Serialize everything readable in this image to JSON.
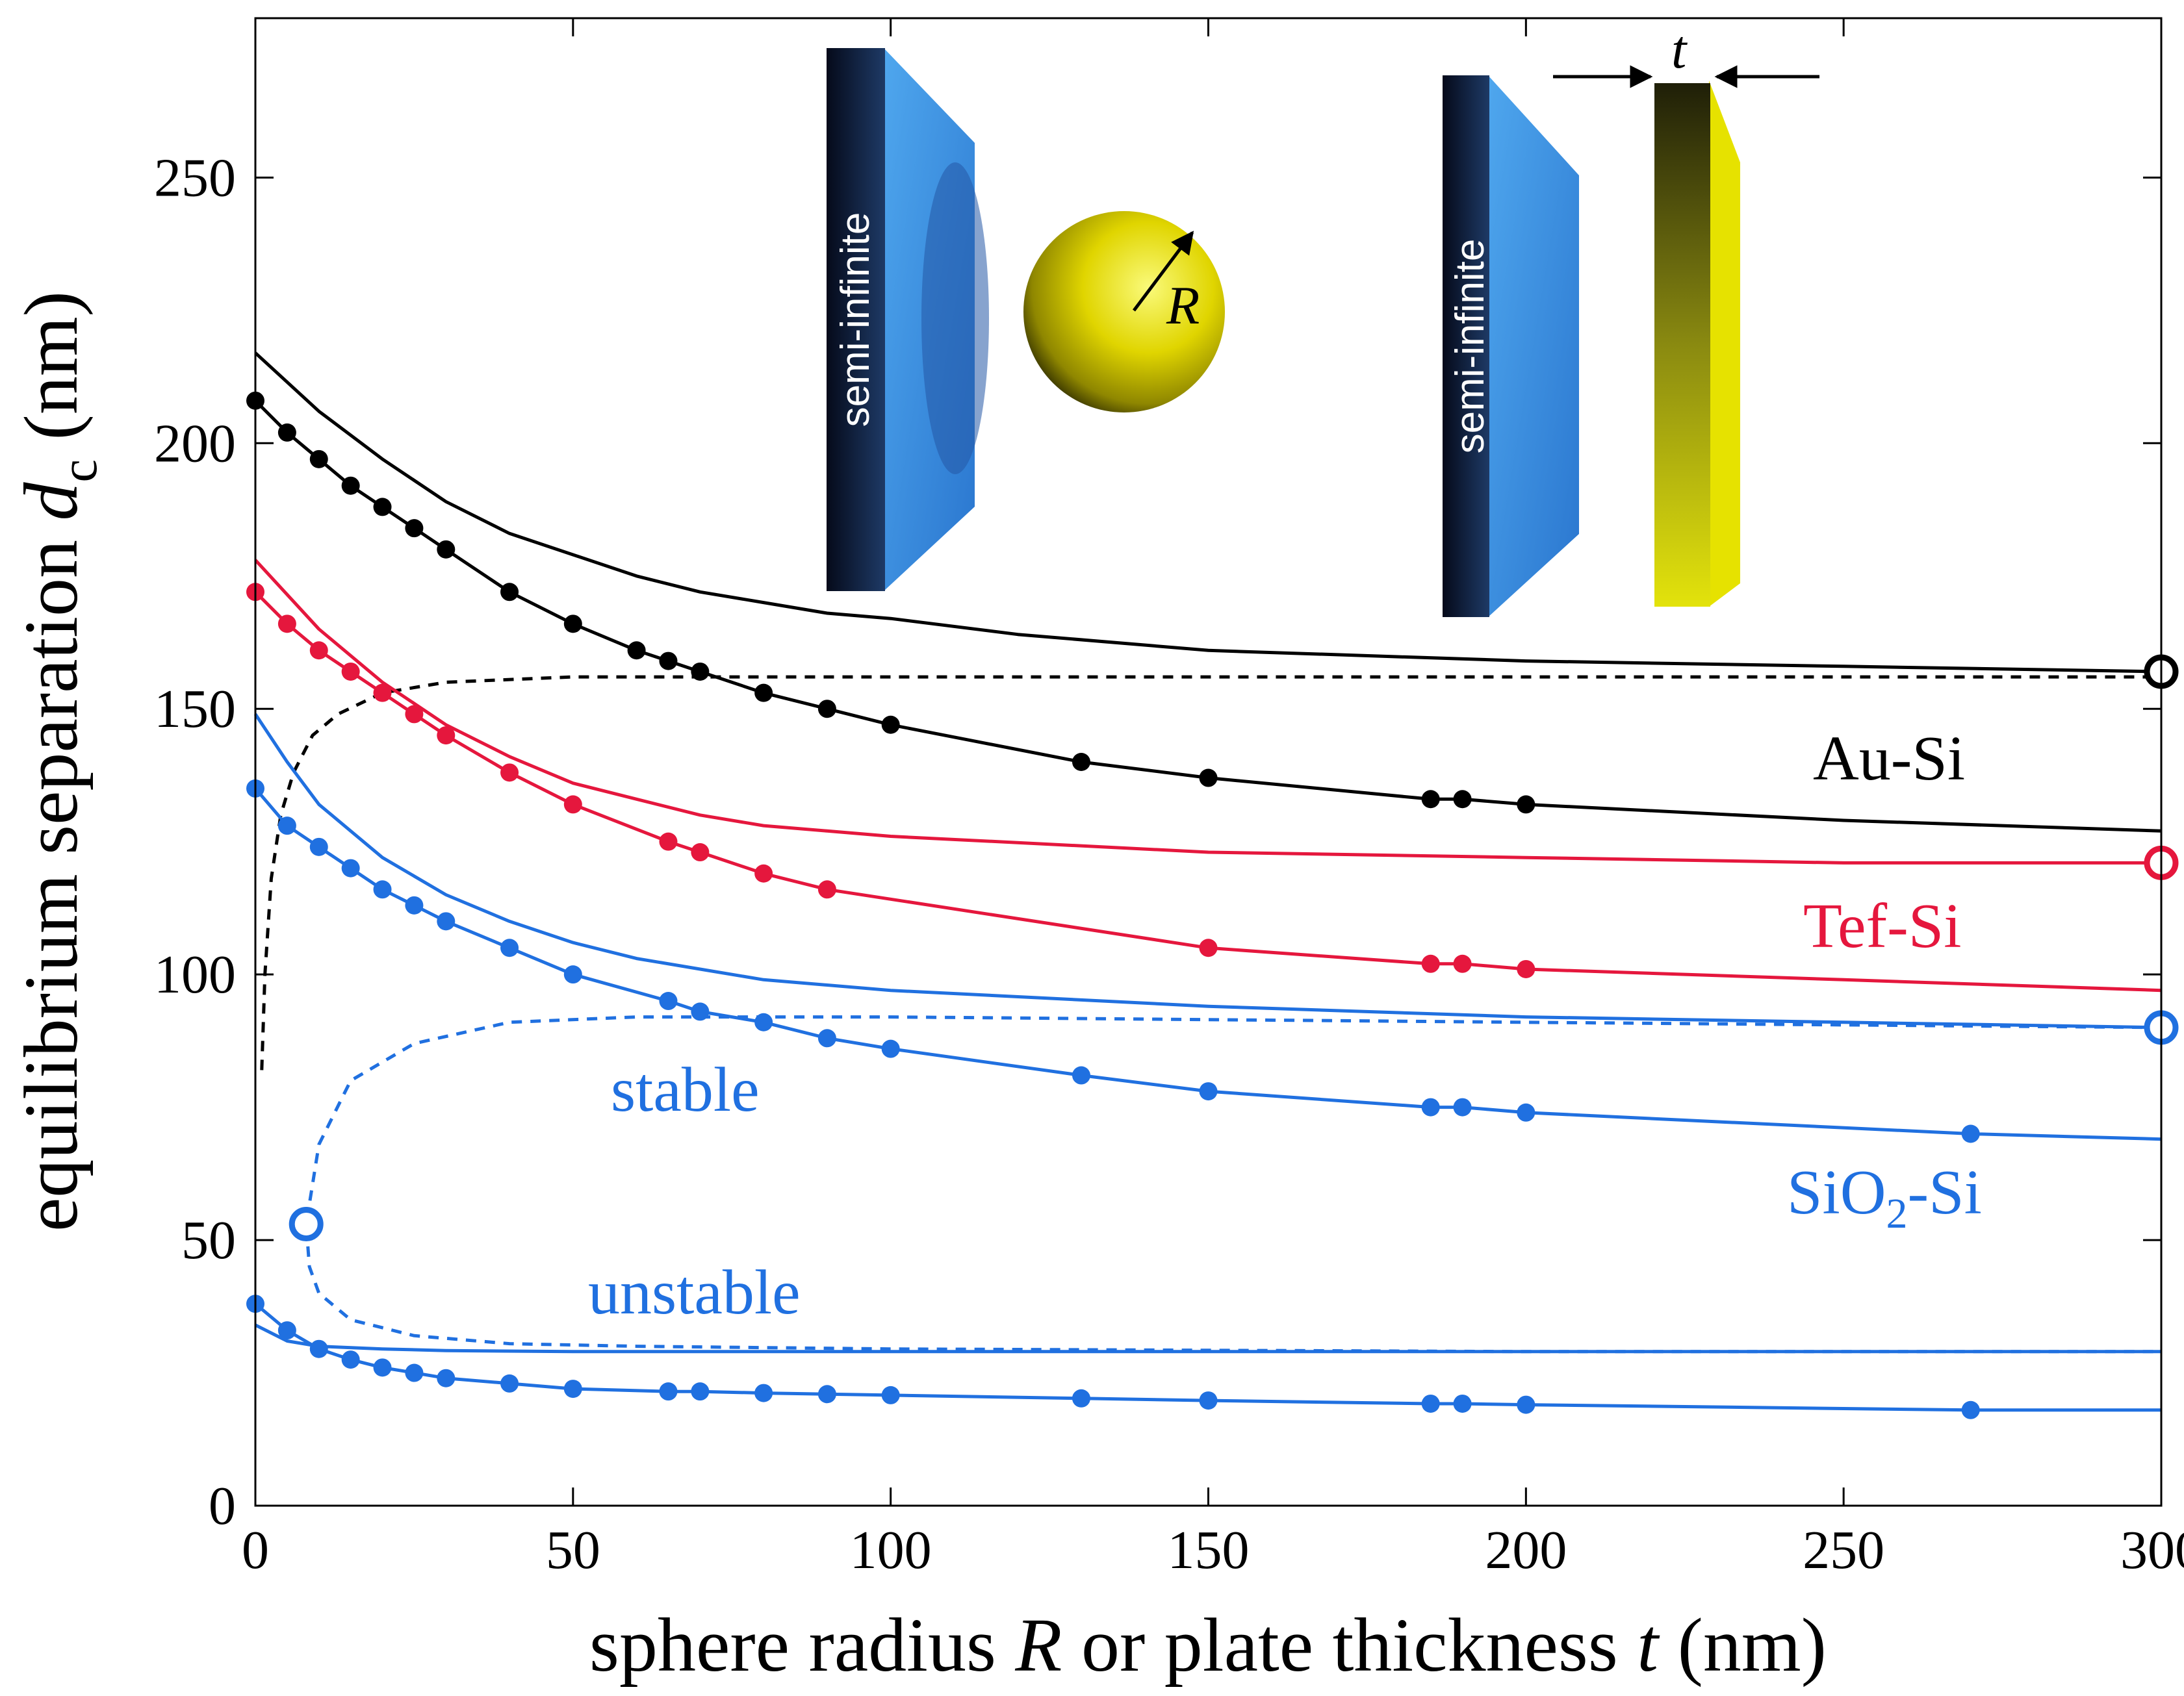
{
  "chart_data": {
    "type": "line",
    "xlabel_prefix": "sphere radius ",
    "xlabel_var1": "R",
    "xlabel_mid": " or plate thickness ",
    "xlabel_var2": "t",
    "xlabel_suffix": " (nm)",
    "ylabel_prefix": "equilibrium separation ",
    "ylabel_var": "d",
    "ylabel_sub": "c",
    "ylabel_suffix": " (nm)",
    "xlim": [
      0,
      300
    ],
    "ylim": [
      0,
      280
    ],
    "xticks": [
      "0",
      "50",
      "100",
      "150",
      "200",
      "250",
      "300"
    ],
    "yticks": [
      "0",
      "50",
      "100",
      "150",
      "200",
      "250"
    ],
    "colors": {
      "black": "#000000",
      "red": "#e5173d",
      "blue": "#2070e0"
    },
    "labels": {
      "au": "Au-Si",
      "tef": "Tef-Si",
      "sio2_prefix": "SiO",
      "sio2_sub": "2",
      "sio2_suffix": "-Si",
      "stable": "stable",
      "unstable": "unstable"
    },
    "series": [
      {
        "name": "Au-Si plate",
        "color": "black",
        "style": "solid",
        "x": [
          0,
          10,
          20,
          30,
          40,
          50,
          60,
          70,
          80,
          90,
          100,
          120,
          150,
          200,
          250,
          300
        ],
        "y": [
          217,
          206,
          197,
          189,
          183,
          179,
          175,
          172,
          170,
          168,
          167,
          164,
          161,
          159,
          158,
          157
        ]
      },
      {
        "name": "Au-Si sphere",
        "color": "black",
        "style": "solid",
        "markers": true,
        "x": [
          0,
          5,
          10,
          15,
          20,
          25,
          30,
          40,
          50,
          60,
          65,
          70,
          80,
          90,
          100,
          130,
          150,
          185,
          190,
          200,
          250,
          300
        ],
        "y": [
          208,
          202,
          197,
          192,
          188,
          184,
          180,
          172,
          166,
          161,
          159,
          157,
          153,
          150,
          147,
          140,
          137,
          133,
          133,
          132,
          129,
          127
        ],
        "marker_x": [
          0,
          5,
          10,
          15,
          20,
          25,
          30,
          40,
          50,
          60,
          65,
          70,
          80,
          90,
          100,
          130,
          150,
          185,
          190,
          200
        ]
      },
      {
        "name": "Au-Si dashed",
        "color": "black",
        "style": "dashed",
        "x": [
          1,
          1.5,
          2.5,
          4,
          6,
          9,
          13,
          20,
          30,
          50,
          100,
          300
        ],
        "y": [
          82,
          100,
          118,
          130,
          138,
          145,
          149,
          153,
          155,
          156,
          156,
          156
        ]
      },
      {
        "name": "Tef-Si plate",
        "color": "red",
        "style": "solid",
        "x": [
          0,
          10,
          20,
          30,
          40,
          50,
          60,
          70,
          80,
          90,
          100,
          150,
          200,
          250,
          300
        ],
        "y": [
          178,
          165,
          155,
          147,
          141,
          136,
          133,
          130,
          128,
          127,
          126,
          123,
          122,
          121,
          121
        ]
      },
      {
        "name": "Tef-Si sphere",
        "color": "red",
        "style": "solid",
        "markers": true,
        "x": [
          0,
          5,
          10,
          15,
          20,
          25,
          30,
          40,
          50,
          65,
          70,
          80,
          90,
          150,
          185,
          190,
          200,
          250,
          300
        ],
        "y": [
          172,
          166,
          161,
          157,
          153,
          149,
          145,
          138,
          132,
          125,
          123,
          119,
          116,
          105,
          102,
          102,
          101,
          99,
          97
        ],
        "marker_x": [
          0,
          5,
          10,
          15,
          20,
          25,
          30,
          40,
          50,
          65,
          70,
          80,
          90,
          150,
          185,
          190,
          200
        ]
      },
      {
        "name": "SiO2-Si plate",
        "color": "blue",
        "style": "solid",
        "x": [
          0,
          5,
          10,
          20,
          30,
          40,
          50,
          60,
          70,
          80,
          100,
          150,
          200,
          250,
          300
        ],
        "y": [
          149,
          140,
          132,
          122,
          115,
          110,
          106,
          103,
          101,
          99,
          97,
          94,
          92,
          91,
          90
        ]
      },
      {
        "name": "SiO2-Si sphere",
        "color": "blue",
        "style": "solid",
        "markers": true,
        "x": [
          0,
          5,
          10,
          15,
          20,
          25,
          30,
          40,
          50,
          65,
          70,
          80,
          90,
          100,
          130,
          150,
          185,
          190,
          200,
          270,
          300
        ],
        "y": [
          135,
          128,
          124,
          120,
          116,
          113,
          110,
          105,
          100,
          95,
          93,
          91,
          88,
          86,
          81,
          78,
          75,
          75,
          74,
          70,
          69
        ],
        "marker_x": [
          0,
          5,
          10,
          15,
          20,
          25,
          30,
          40,
          50,
          65,
          70,
          80,
          90,
          100,
          130,
          150,
          185,
          190,
          200,
          270
        ]
      },
      {
        "name": "SiO2-Si dashed",
        "color": "blue",
        "style": "dashed",
        "x": [
          300,
          200,
          100,
          60,
          40,
          25,
          15,
          10,
          8,
          8.5,
          10,
          15,
          25,
          40,
          60,
          100,
          200,
          300
        ],
        "y": [
          90,
          91,
          92,
          92,
          91,
          87,
          80,
          68,
          53,
          45,
          40,
          35,
          32,
          30.5,
          30,
          29.5,
          29,
          29
        ]
      },
      {
        "name": "SiO2-Si lower plate",
        "color": "blue",
        "style": "solid",
        "x": [
          0,
          5,
          10,
          20,
          30,
          50,
          100,
          200,
          300
        ],
        "y": [
          34,
          31,
          30,
          29.5,
          29.2,
          29,
          29,
          29,
          29
        ]
      },
      {
        "name": "SiO2-Si lower sphere",
        "color": "blue",
        "style": "solid",
        "markers": true,
        "x": [
          0,
          5,
          10,
          15,
          20,
          25,
          30,
          40,
          50,
          65,
          70,
          80,
          90,
          100,
          130,
          150,
          185,
          190,
          200,
          270,
          300
        ],
        "y": [
          38,
          33,
          29.5,
          27.5,
          26,
          25,
          24,
          23,
          22,
          21.5,
          21.5,
          21.2,
          21,
          20.8,
          20.2,
          19.8,
          19.2,
          19.2,
          19,
          18,
          18
        ],
        "marker_x": [
          0,
          5,
          10,
          15,
          20,
          25,
          30,
          40,
          50,
          65,
          70,
          80,
          90,
          100,
          130,
          150,
          185,
          190,
          200,
          270
        ]
      }
    ],
    "open_markers": [
      {
        "x": 300,
        "y": 157,
        "color": "black"
      },
      {
        "x": 300,
        "y": 121,
        "color": "red"
      },
      {
        "x": 300,
        "y": 90,
        "color": "blue"
      },
      {
        "x": 8,
        "y": 53,
        "color": "blue"
      }
    ],
    "inset": {
      "slab_text": "semi-infinite",
      "radius_symbol": "R",
      "thickness_symbol": "t"
    }
  }
}
